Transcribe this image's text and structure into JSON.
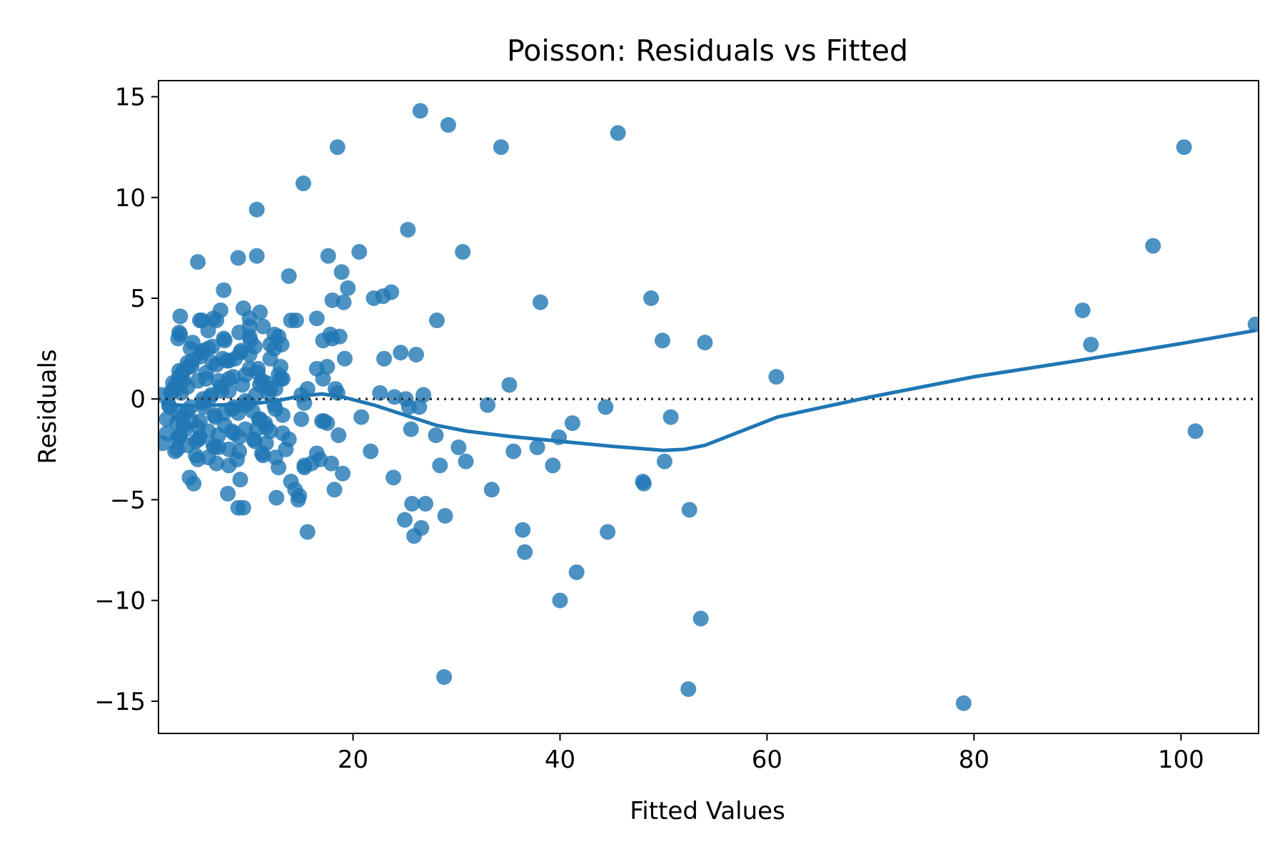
{
  "chart_data": {
    "type": "scatter",
    "title": "Poisson: Residuals vs Fitted",
    "xlabel": "Fitted Values",
    "ylabel": "Residuals",
    "xlim": [
      1.2,
      107.5
    ],
    "ylim": [
      -16.6,
      15.8
    ],
    "xticks": [
      20,
      40,
      60,
      80,
      100
    ],
    "xtick_labels": [
      "20",
      "40",
      "60",
      "80",
      "100"
    ],
    "yticks": [
      15,
      10,
      5,
      0,
      -5,
      -10,
      -15
    ],
    "ytick_labels": [
      "15",
      "10",
      "5",
      "0",
      "−5",
      "−10",
      "−15"
    ],
    "grid": false,
    "legend": "none",
    "reference_line": {
      "y": 0,
      "style": "dotted",
      "color": "#333333"
    },
    "colors": {
      "points": "#1f77b4",
      "smooth_line": "#1f77b4"
    },
    "series": [
      {
        "kind": "points",
        "x": [
          1.5,
          2.2,
          2.6,
          3.0,
          3.0,
          3.1,
          3.2,
          3.3,
          3.4,
          3.5,
          3.6,
          3.8,
          4.0,
          4.3,
          4.5,
          4.8,
          5.0,
          5.2,
          5.4,
          5.5,
          5.8,
          6.0,
          6.2,
          6.4,
          6.6,
          6.8,
          7.0,
          7.3,
          7.6,
          8.0,
          8.3,
          8.6,
          9.0,
          9.3,
          9.6,
          10.0,
          10.3,
          10.6,
          10.9,
          11.2,
          11.6,
          12.0,
          12.4,
          12.8,
          13.2,
          1.6,
          2.0,
          2.4,
          2.8,
          3.2,
          3.6,
          4.0,
          4.4,
          4.8,
          5.2,
          5.6,
          6.0,
          6.4,
          6.8,
          7.2,
          7.6,
          8.0,
          8.4,
          8.8,
          9.2,
          9.6,
          10.0,
          10.4,
          10.8,
          11.2,
          11.6,
          12.0,
          12.4,
          12.8,
          13.2,
          2.0,
          2.5,
          3.0,
          3.5,
          4.0,
          4.5,
          5.0,
          5.5,
          6.0,
          6.5,
          7.0,
          7.5,
          8.0,
          8.5,
          9.0,
          9.5,
          10.0,
          10.5,
          11.0,
          11.5,
          12.0,
          12.5,
          13.0,
          3.0,
          4.0,
          5.0,
          6.0,
          7.0,
          8.0,
          9.0,
          10.0,
          11.0,
          12.0,
          2.3,
          2.9,
          3.6,
          4.3,
          5.1,
          5.8,
          6.7,
          7.5,
          8.3,
          9.1,
          9.9,
          10.8,
          11.6,
          12.5,
          3.2,
          4.4,
          5.5,
          6.6,
          7.8,
          8.9,
          10.1,
          11.3,
          3.1,
          4.1,
          5.2,
          6.3,
          7.4,
          8.5,
          9.6,
          10.7,
          11.8,
          3.3,
          5.4,
          7.2,
          9.4,
          3.3,
          3.2,
          4.2,
          4.6,
          5.0,
          5.2,
          6.5,
          6.8,
          7.5,
          7.9,
          8.0,
          8.9,
          8.9,
          9.1,
          9.4,
          10.0,
          10.7,
          10.7,
          11.0,
          11.3,
          12.4,
          12.6,
          13.1,
          13.8,
          14.0,
          14.5,
          14.8,
          15.2,
          15.3,
          15.6,
          16.5,
          17.0,
          17.1,
          17.5,
          17.6,
          17.8,
          18.0,
          18.5,
          18.9,
          19.0,
          19.1,
          19.2,
          19.5,
          13.2,
          13.5,
          14.0,
          14.4,
          14.7,
          15.0,
          15.3,
          15.6,
          16.0,
          16.5,
          16.8,
          17.2,
          17.5,
          17.9,
          18.2,
          18.6,
          13.0,
          12.5,
          13.8,
          15.0,
          16.5,
          17.1,
          18.0,
          18.3,
          18.7,
          18.5,
          10.5,
          15.3,
          12.8,
          20.6,
          20.8,
          21.7,
          22.0,
          22.6,
          22.9,
          23.0,
          23.7,
          23.9,
          24.0,
          24.6,
          25.0,
          25.1,
          25.3,
          25.4,
          25.6,
          25.7,
          25.9,
          26.1,
          26.4,
          26.6,
          26.8,
          27.0,
          28.0,
          28.1,
          28.4,
          28.9,
          29.2,
          30.2,
          30.6,
          30.9,
          33.0,
          33.4,
          34.3,
          35.1,
          35.5,
          36.4,
          36.6,
          37.8,
          38.1,
          39.3,
          39.9,
          40.0,
          41.2,
          41.6,
          44.4,
          44.6,
          45.6,
          48.0,
          48.1,
          48.8,
          49.9,
          50.1,
          50.7,
          52.4,
          52.5,
          53.6,
          54.0,
          60.9,
          79.0,
          90.5,
          91.3,
          97.3,
          100.3,
          101.4,
          107.2,
          28.8,
          26.5
        ],
        "y": [
          0.2,
          -0.3,
          0.8,
          -1.2,
          0.5,
          -0.7,
          1.1,
          -1.8,
          0.3,
          -0.9,
          1.4,
          -1.5,
          0.6,
          -0.4,
          1.9,
          -2.1,
          0.9,
          -1.1,
          2.3,
          -0.2,
          1.3,
          -1.6,
          0.1,
          2.6,
          -0.8,
          1.7,
          -2.4,
          0.4,
          -1.3,
          1.0,
          -0.5,
          2.0,
          -1.9,
          0.7,
          -0.1,
          1.5,
          -0.6,
          0.2,
          -1.0,
          0.9,
          -1.4,
          0.5,
          -0.3,
          1.2,
          -0.8,
          -2.2,
          -1.7,
          0.3,
          -2.6,
          -1.9,
          0.9,
          -2.3,
          1.6,
          -2.8,
          2.1,
          -0.4,
          -2.9,
          1.8,
          -3.2,
          0.6,
          2.9,
          -2.5,
          1.1,
          -3.0,
          2.4,
          -1.5,
          3.1,
          -2.0,
          1.3,
          -2.7,
          0.8,
          -1.6,
          2.5,
          -3.4,
          1.0,
          -1.0,
          0.4,
          -2.0,
          1.2,
          -0.6,
          2.8,
          -1.4,
          0.0,
          3.4,
          -2.3,
          0.9,
          -0.7,
          1.9,
          -1.7,
          3.3,
          -0.3,
          2.2,
          -2.1,
          0.7,
          -1.2,
          2.0,
          -0.5,
          1.6,
          -2.5,
          1.8,
          -3.0,
          2.5,
          -1.8,
          0.4,
          -2.6,
          3.6,
          -1.0,
          2.7,
          -0.4,
          0.7,
          -1.3,
          2.5,
          -2.0,
          1.0,
          -0.9,
          3.0,
          -1.6,
          2.3,
          -0.2,
          1.5,
          -2.2,
          0.5,
          1.4,
          -1.1,
          2.4,
          -2.4,
          1.9,
          -0.7,
          2.9,
          -2.8,
          3.0,
          1.6,
          -1.9,
          0.2,
          2.0,
          -0.4,
          1.2,
          -1.5,
          0.3,
          3.2,
          3.9,
          4.4,
          4.5,
          4.1,
          3.3,
          -3.9,
          -4.2,
          6.8,
          3.9,
          4.0,
          3.9,
          5.4,
          -4.7,
          -3.3,
          7.0,
          -5.4,
          -4.0,
          -5.4,
          4.0,
          9.4,
          7.1,
          4.3,
          3.6,
          3.2,
          -4.9,
          2.7,
          6.1,
          3.9,
          3.9,
          -4.8,
          10.7,
          -3.3,
          -6.6,
          4.0,
          -1.1,
          2.9,
          1.6,
          7.1,
          3.2,
          4.9,
          12.5,
          6.3,
          -3.7,
          4.8,
          2.0,
          5.5,
          -1.7,
          -2.5,
          -4.1,
          -4.5,
          -5.0,
          -1.0,
          -3.4,
          0.5,
          -3.2,
          -2.7,
          -3.0,
          -1.1,
          -1.2,
          -3.2,
          -4.5,
          -1.8,
          1.0,
          -2.9,
          -2.0,
          0.2,
          1.5,
          1.0,
          3.0,
          0.5,
          3.1,
          0.3,
          2.6,
          -0.2,
          3.1,
          7.3,
          -0.9,
          -2.6,
          5.0,
          0.3,
          5.1,
          2.0,
          5.3,
          -3.9,
          0.1,
          2.3,
          -6.0,
          0.0,
          8.4,
          -0.4,
          -1.5,
          -5.2,
          -6.8,
          2.2,
          -0.4,
          -6.4,
          0.2,
          -5.2,
          -1.8,
          3.9,
          -3.3,
          -5.8,
          13.6,
          -2.4,
          7.3,
          -3.1,
          -0.3,
          -4.5,
          12.5,
          0.7,
          -2.6,
          -6.5,
          -7.6,
          -2.4,
          4.8,
          -3.3,
          -1.9,
          -10.0,
          -1.2,
          -8.6,
          -0.4,
          -6.6,
          13.2,
          -4.1,
          -4.2,
          5.0,
          2.9,
          -3.1,
          -0.9,
          -14.4,
          -5.5,
          -10.9,
          2.8,
          1.1,
          -15.1,
          4.4,
          2.7,
          7.6,
          12.5,
          -1.6,
          3.7,
          -13.8,
          14.3
        ]
      },
      {
        "kind": "smooth_line",
        "x": [
          1.5,
          3,
          5,
          7,
          9,
          11,
          13,
          15,
          17,
          19,
          22,
          25,
          28,
          31,
          35,
          40,
          45,
          50,
          52,
          54,
          57,
          61,
          65,
          70,
          75,
          80,
          90,
          100,
          107.2
        ],
        "y": [
          -0.2,
          -0.3,
          -0.35,
          -0.3,
          -0.25,
          -0.2,
          -0.05,
          0.15,
          0.25,
          0.1,
          -0.3,
          -0.8,
          -1.3,
          -1.6,
          -1.85,
          -2.1,
          -2.35,
          -2.55,
          -2.5,
          -2.3,
          -1.7,
          -0.9,
          -0.45,
          0.1,
          0.6,
          1.1,
          1.9,
          2.75,
          3.4
        ]
      }
    ]
  }
}
